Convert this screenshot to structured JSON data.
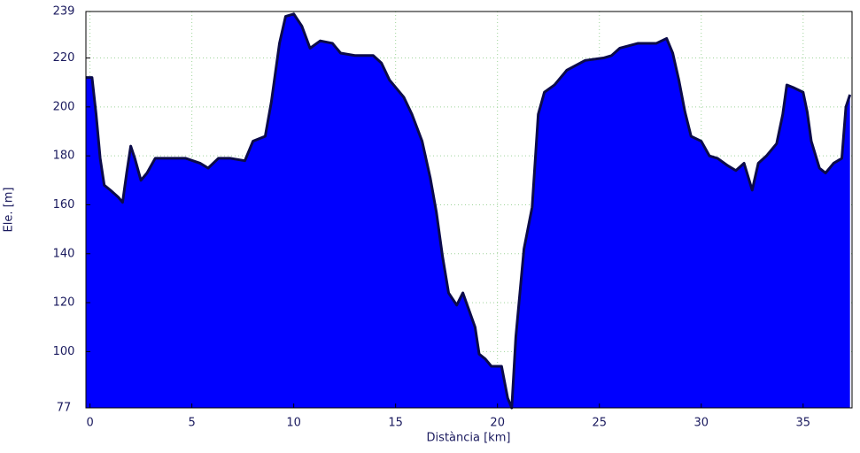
{
  "chart_data": {
    "type": "area",
    "xlabel": "Distància [km]",
    "ylabel": "Ele. [m]",
    "x": [
      -0.2,
      0.1,
      0.3,
      0.5,
      0.7,
      1.0,
      1.4,
      1.6,
      1.8,
      2.0,
      2.2,
      2.5,
      2.8,
      3.2,
      3.9,
      4.7,
      5.4,
      5.8,
      6.3,
      6.9,
      7.6,
      8.0,
      8.6,
      8.9,
      9.3,
      9.6,
      10.0,
      10.4,
      10.8,
      11.3,
      11.9,
      12.3,
      13.0,
      13.9,
      14.3,
      14.7,
      15.4,
      15.8,
      16.3,
      16.7,
      17.0,
      17.3,
      17.6,
      18.0,
      18.3,
      18.6,
      18.9,
      19.1,
      19.4,
      19.7,
      20.2,
      20.5,
      20.7,
      20.9,
      21.3,
      21.7,
      22.0,
      22.3,
      22.8,
      23.4,
      24.3,
      25.2,
      25.6,
      26.0,
      26.9,
      27.8,
      28.3,
      28.6,
      28.9,
      29.2,
      29.5,
      30.0,
      30.4,
      30.8,
      31.3,
      31.7,
      32.1,
      32.5,
      32.8,
      33.2,
      33.7,
      34.0,
      34.2,
      34.5,
      35.0,
      35.2,
      35.4,
      35.8,
      36.1,
      36.5,
      36.9,
      37.1,
      37.3
    ],
    "series": [
      {
        "color": "#0000ff",
        "line_color": "#0b0b4a",
        "values": [
          212,
          212,
          197,
          179,
          168,
          166,
          163,
          161,
          173,
          184,
          179,
          170,
          173,
          179,
          179,
          179,
          177,
          175,
          179,
          179,
          178,
          186,
          188,
          202,
          226,
          237,
          238,
          233,
          224,
          227,
          226,
          222,
          221,
          221,
          218,
          211,
          204,
          197,
          186,
          171,
          157,
          139,
          124,
          119,
          124,
          117,
          110,
          99,
          97,
          94,
          94,
          81,
          77,
          106,
          142,
          159,
          197,
          206,
          209,
          215,
          219,
          220,
          221,
          224,
          226,
          226,
          228,
          222,
          211,
          198,
          188,
          186,
          180,
          179,
          176,
          174,
          177,
          166,
          177,
          180,
          185,
          197,
          209,
          208,
          206,
          198,
          186,
          175,
          173,
          177,
          179,
          200,
          205
        ]
      }
    ],
    "xlim": [
      -0.2,
      37.4
    ],
    "ylim": [
      77,
      239
    ],
    "xticks": [
      0,
      5,
      10,
      15,
      20,
      25,
      30,
      35
    ],
    "yticks": [
      77,
      100,
      120,
      140,
      160,
      180,
      200,
      220,
      239
    ],
    "grid": true
  }
}
